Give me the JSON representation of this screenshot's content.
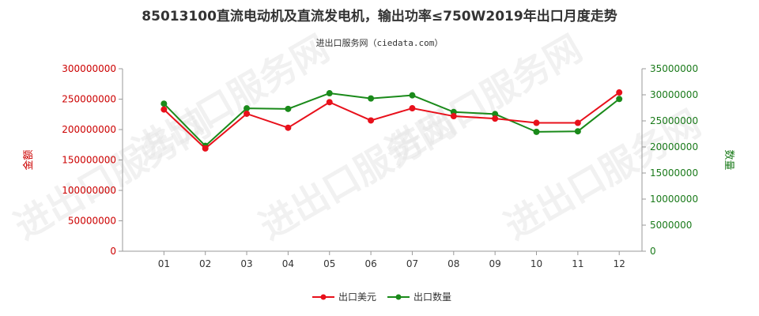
{
  "chart_data": {
    "type": "line",
    "title": "85013100直流电动机及直流发电机，输出功率≤750W2019年出口月度走势",
    "subtitle": "进出口服务网（ciedata.com）",
    "watermark": "进出口服务网",
    "categories": [
      "01",
      "02",
      "03",
      "04",
      "05",
      "06",
      "07",
      "08",
      "09",
      "10",
      "11",
      "12"
    ],
    "left_axis": {
      "label": "金额",
      "ylim": [
        0,
        300000000
      ],
      "ticks": [
        "0",
        "50000000",
        "100000000",
        "150000000",
        "200000000",
        "250000000",
        "300000000"
      ],
      "color": "#e8101b"
    },
    "right_axis": {
      "label": "数量",
      "ylim": [
        0,
        35000000
      ],
      "ticks": [
        "0",
        "5000000",
        "10000000",
        "15000000",
        "20000000",
        "25000000",
        "30000000",
        "35000000"
      ],
      "color": "#1a8a1a"
    },
    "series": [
      {
        "name": "出口美元",
        "axis": "left",
        "color": "#e8101b",
        "values": [
          233000000,
          169000000,
          226000000,
          203000000,
          245000000,
          215000000,
          235000000,
          222000000,
          218000000,
          211000000,
          211000000,
          261000000
        ]
      },
      {
        "name": "出口数量",
        "axis": "right",
        "color": "#1a8a1a",
        "values": [
          28300000,
          20200000,
          27400000,
          27300000,
          30300000,
          29300000,
          29900000,
          26700000,
          26300000,
          22900000,
          23000000,
          29200000
        ]
      }
    ],
    "grid": false,
    "legend_position": "bottom-center"
  }
}
